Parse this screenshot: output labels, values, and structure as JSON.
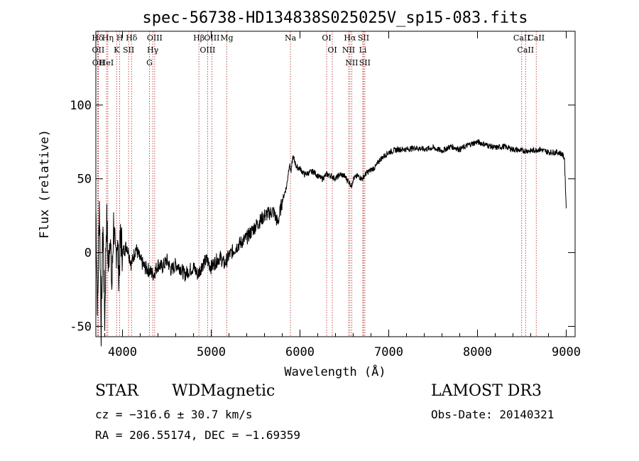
{
  "chart_data": {
    "type": "line",
    "title": "spec-56738-HD134838S025025V_sp15-083.fits",
    "xlabel": "Wavelength (Å)",
    "ylabel": "Flux (relative)",
    "xlim": [
      3700,
      9100
    ],
    "ylim": [
      -57,
      150
    ],
    "xticks": [
      4000,
      5000,
      6000,
      7000,
      8000,
      9000
    ],
    "yticks": [
      -50,
      0,
      50,
      100
    ],
    "series": [
      {
        "name": "flux",
        "x": [
          3700,
          3720,
          3740,
          3760,
          3780,
          3800,
          3820,
          3840,
          3860,
          3880,
          3900,
          3920,
          3940,
          3960,
          3980,
          4000,
          4050,
          4100,
          4150,
          4200,
          4250,
          4300,
          4350,
          4400,
          4450,
          4500,
          4550,
          4600,
          4650,
          4700,
          4750,
          4800,
          4850,
          4900,
          4950,
          5000,
          5050,
          5100,
          5150,
          5200,
          5300,
          5400,
          5500,
          5600,
          5700,
          5750,
          5800,
          5850,
          5880,
          5900,
          5920,
          5940,
          5960,
          6000,
          6050,
          6100,
          6150,
          6200,
          6250,
          6300,
          6350,
          6400,
          6450,
          6500,
          6550,
          6580,
          6600,
          6650,
          6700,
          6750,
          6800,
          6850,
          6900,
          7000,
          7100,
          7200,
          7300,
          7400,
          7500,
          7600,
          7700,
          7800,
          7900,
          8000,
          8100,
          8200,
          8300,
          8400,
          8500,
          8600,
          8700,
          8800,
          8900,
          8950,
          8980,
          9000
        ],
        "y": [
          30,
          -40,
          35,
          -50,
          20,
          -45,
          25,
          -10,
          15,
          -25,
          20,
          -5,
          10,
          -15,
          12,
          0,
          5,
          -8,
          3,
          -5,
          -10,
          -12,
          -15,
          -8,
          -10,
          -5,
          -12,
          -8,
          -10,
          -15,
          -12,
          -10,
          -15,
          -8,
          -5,
          -10,
          -6,
          -3,
          -8,
          -2,
          5,
          10,
          18,
          25,
          28,
          20,
          35,
          45,
          60,
          55,
          65,
          62,
          58,
          57,
          53,
          54,
          55,
          52,
          50,
          53,
          52,
          50,
          53,
          52,
          48,
          45,
          50,
          52,
          50,
          54,
          56,
          58,
          63,
          68,
          70,
          70,
          71,
          70,
          71,
          69,
          72,
          70,
          73,
          75,
          73,
          71,
          72,
          70,
          69,
          69,
          70,
          68,
          68,
          67,
          64,
          30
        ]
      }
    ],
    "line_markers": [
      {
        "label": "Hδ",
        "x": 3720
      },
      {
        "label": "OII",
        "x": 3727
      },
      {
        "label": "OII",
        "x": 3729
      },
      {
        "label": "HeI",
        "x": 3820
      },
      {
        "label": "Hη",
        "x": 3835
      },
      {
        "label": "K",
        "x": 3934
      },
      {
        "label": "H",
        "x": 3969
      },
      {
        "label": "SII",
        "x": 4069
      },
      {
        "label": "Hδ",
        "x": 4102
      },
      {
        "label": "OIII",
        "x": 4363
      },
      {
        "label": "Hγ",
        "x": 4341
      },
      {
        "label": "G",
        "x": 4304
      },
      {
        "label": "Hβ",
        "x": 4861
      },
      {
        "label": "OIII",
        "x": 4959
      },
      {
        "label": "OIII",
        "x": 5007
      },
      {
        "label": "Mg",
        "x": 5175
      },
      {
        "label": "Na",
        "x": 5893
      },
      {
        "label": "OI",
        "x": 6300
      },
      {
        "label": "OI",
        "x": 6364
      },
      {
        "label": "Hα",
        "x": 6563
      },
      {
        "label": "NII",
        "x": 6548
      },
      {
        "label": "NII",
        "x": 6583
      },
      {
        "label": "SII",
        "x": 6716
      },
      {
        "label": "Li",
        "x": 6708
      },
      {
        "label": "SII",
        "x": 6731
      },
      {
        "label": "CaII",
        "x": 8498
      },
      {
        "label": "CaII",
        "x": 8542
      },
      {
        "label": "CaII",
        "x": 8662
      }
    ]
  },
  "info": {
    "class_label": "STAR",
    "subclass": "WDMagnetic",
    "survey": "LAMOST DR3",
    "velocity": "cz = −316.6 ± 30.7 km/s",
    "obs_date": "Obs-Date: 20140321",
    "coords": "RA = 206.55174, DEC =  −1.69359"
  }
}
